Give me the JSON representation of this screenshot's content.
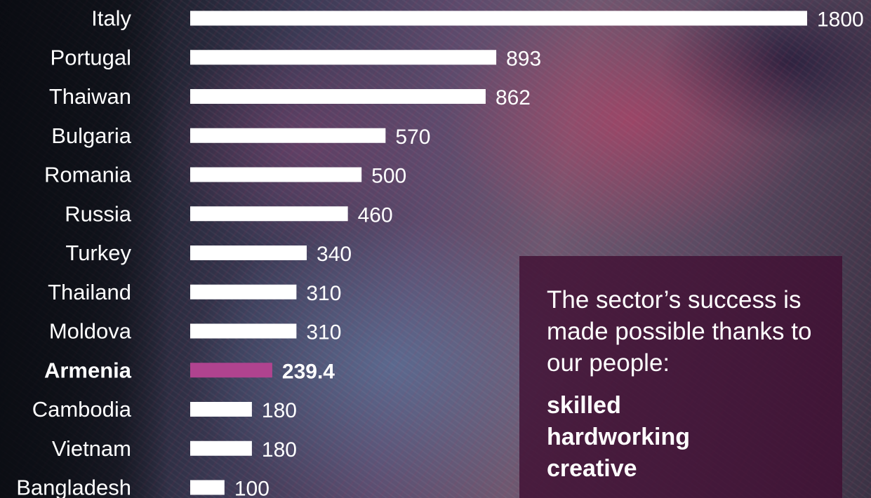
{
  "colors": {
    "bar": "#ffffff",
    "highlight_bar": "#b0438f",
    "panel": "#400e32",
    "text": "#ffffff"
  },
  "chart_data": {
    "type": "bar",
    "orientation": "horizontal",
    "title": "",
    "xlabel": "",
    "ylabel": "",
    "xlim": [
      0,
      1800
    ],
    "grid": false,
    "categories": [
      "Italy",
      "Portugal",
      "Thaiwan",
      "Bulgaria",
      "Romania",
      "Russia",
      "Turkey",
      "Thailand",
      "Moldova",
      "Armenia",
      "Cambodia",
      "Vietnam",
      "Bangladesh"
    ],
    "values": [
      1800,
      893,
      862,
      570,
      500,
      460,
      340,
      310,
      310,
      239.4,
      180,
      180,
      100
    ],
    "value_labels": [
      "1800",
      "893",
      "862",
      "570",
      "500",
      "460",
      "340",
      "310",
      "310",
      "239.4",
      "180",
      "180",
      "100"
    ],
    "highlight": "Armenia"
  },
  "info_box": {
    "text": "The sector’s success is made possible thanks to our people:",
    "qualities": [
      "skilled",
      "hardworking",
      "creative"
    ]
  }
}
